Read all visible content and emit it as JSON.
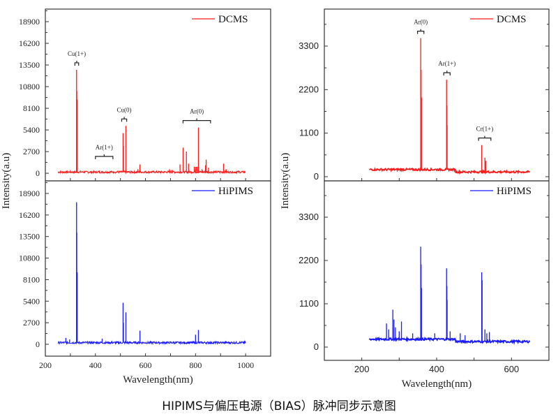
{
  "caption": "HIPIMS与偏压电源（BIAS）脉冲同步示意图",
  "colors": {
    "DCMS": "#ff1a1a",
    "HiPIMS": "#1a1aff",
    "axis": "#333333"
  },
  "chart_data": [
    {
      "type": "line",
      "panel": "left-top",
      "legend": "DCMS",
      "legend_placement": "top-right",
      "xlim": [
        200,
        1100
      ],
      "ylim": [
        -950,
        20470
      ],
      "xticks": [],
      "yticks": [
        0,
        2700,
        5400,
        8100,
        10800,
        13500,
        16200,
        18900
      ],
      "ylabel": "Intensity(a.u)",
      "baseline": {
        "x_range": [
          250,
          1000
        ],
        "level": 150
      },
      "peaks": [
        [
          324.7,
          12900
        ],
        [
          325.5,
          10300
        ],
        [
          327.4,
          9200
        ],
        [
          340,
          300
        ],
        [
          510.5,
          5000
        ],
        [
          512,
          3400
        ],
        [
          521.8,
          5900
        ],
        [
          570,
          500
        ],
        [
          578,
          1100
        ],
        [
          696,
          500
        ],
        [
          706,
          400
        ],
        [
          738,
          1100
        ],
        [
          750.4,
          3200
        ],
        [
          763.5,
          2700
        ],
        [
          772,
          1200
        ],
        [
          795,
          800
        ],
        [
          801,
          800
        ],
        [
          806,
          800
        ],
        [
          811.5,
          5700
        ],
        [
          826,
          500
        ],
        [
          840,
          1000
        ],
        [
          842.5,
          1700
        ],
        [
          852,
          700
        ],
        [
          912,
          1200
        ],
        [
          922,
          500
        ],
        [
          965,
          300
        ]
      ],
      "annotations": [
        {
          "label": "Cu(1+)",
          "x_range": [
            318,
            333
          ]
        },
        {
          "label": "Ar(1+)",
          "x_range": [
            400,
            470
          ]
        },
        {
          "label": "Cu(0)",
          "x_range": [
            505,
            525
          ]
        },
        {
          "label": "Ar(0)",
          "x_range": [
            750,
            860
          ]
        }
      ]
    },
    {
      "type": "line",
      "panel": "left-bottom",
      "legend": "HiPIMS",
      "legend_placement": "top-right",
      "xlim": [
        200,
        1100
      ],
      "ylim": [
        -1490,
        20475
      ],
      "xticks": [
        200,
        400,
        600,
        800,
        1000
      ],
      "yticks": [
        0,
        2700,
        5400,
        8100,
        10800,
        13500,
        16200,
        18900
      ],
      "xlabel": "Wavelength(nm)",
      "ylabel": "Intensity(a.u)",
      "baseline": {
        "x_range": [
          250,
          1000
        ],
        "level": 200
      },
      "peaks": [
        [
          282,
          800
        ],
        [
          297,
          600
        ],
        [
          324.7,
          17800
        ],
        [
          325.5,
          14000
        ],
        [
          327.4,
          9000
        ],
        [
          427,
          700
        ],
        [
          465,
          400
        ],
        [
          510.5,
          5200
        ],
        [
          512,
          2700
        ],
        [
          521.8,
          4000
        ],
        [
          578,
          1700
        ],
        [
          800,
          1200
        ],
        [
          811.5,
          1800
        ]
      ],
      "annotations": []
    },
    {
      "type": "line",
      "panel": "right-top",
      "legend": "DCMS",
      "legend_placement": "top-right",
      "xlim": [
        100,
        700
      ],
      "ylim": [
        -106,
        4235
      ],
      "xticks": [],
      "yticks": [
        0,
        1100,
        2200,
        3300
      ],
      "ylabel": "Intensity(a.u)",
      "baseline": {
        "x_range": [
          220,
          650
        ],
        "level": 180,
        "step_at": 450,
        "level_after": 120
      },
      "peaks": [
        [
          357.5,
          3500
        ],
        [
          358.5,
          2700
        ],
        [
          359.5,
          2000
        ],
        [
          426.5,
          2450
        ],
        [
          427.3,
          1800
        ],
        [
          428,
          1300
        ],
        [
          520.5,
          800
        ],
        [
          529,
          480
        ],
        [
          531,
          400
        ]
      ],
      "annotations": [
        {
          "label": "Ar(0)",
          "x_range": [
            349,
            366
          ]
        },
        {
          "label": "Ar(1+)",
          "x_range": [
            419,
            436
          ]
        },
        {
          "label": "Cr(1+)",
          "x_range": [
            512,
            545
          ]
        }
      ]
    },
    {
      "type": "line",
      "panel": "right-bottom",
      "legend": "HiPIMS",
      "legend_placement": "top-right",
      "xlim": [
        100,
        700
      ],
      "ylim": [
        -337,
        4223
      ],
      "xticks": [
        200,
        400,
        600
      ],
      "yticks": [
        0,
        1100,
        2200,
        3300
      ],
      "xlabel": "Wavelength(nm)",
      "ylabel": "Intensity(a.u)",
      "baseline": {
        "x_range": [
          220,
          650
        ],
        "level": 200,
        "step_at": 450,
        "level_after": 140
      },
      "peaks": [
        [
          266,
          600
        ],
        [
          272,
          450
        ],
        [
          283,
          950
        ],
        [
          286,
          700
        ],
        [
          290,
          500
        ],
        [
          300,
          400
        ],
        [
          306,
          650
        ],
        [
          336,
          350
        ],
        [
          357.5,
          2550
        ],
        [
          358.5,
          2100
        ],
        [
          359.5,
          1500
        ],
        [
          395,
          350
        ],
        [
          426.5,
          2000
        ],
        [
          427.3,
          1550
        ],
        [
          428,
          1200
        ],
        [
          436,
          400
        ],
        [
          463,
          350
        ],
        [
          476,
          300
        ],
        [
          520.5,
          1900
        ],
        [
          521.5,
          1700
        ],
        [
          529,
          450
        ],
        [
          534,
          350
        ],
        [
          541,
          380
        ]
      ],
      "annotations": []
    }
  ]
}
